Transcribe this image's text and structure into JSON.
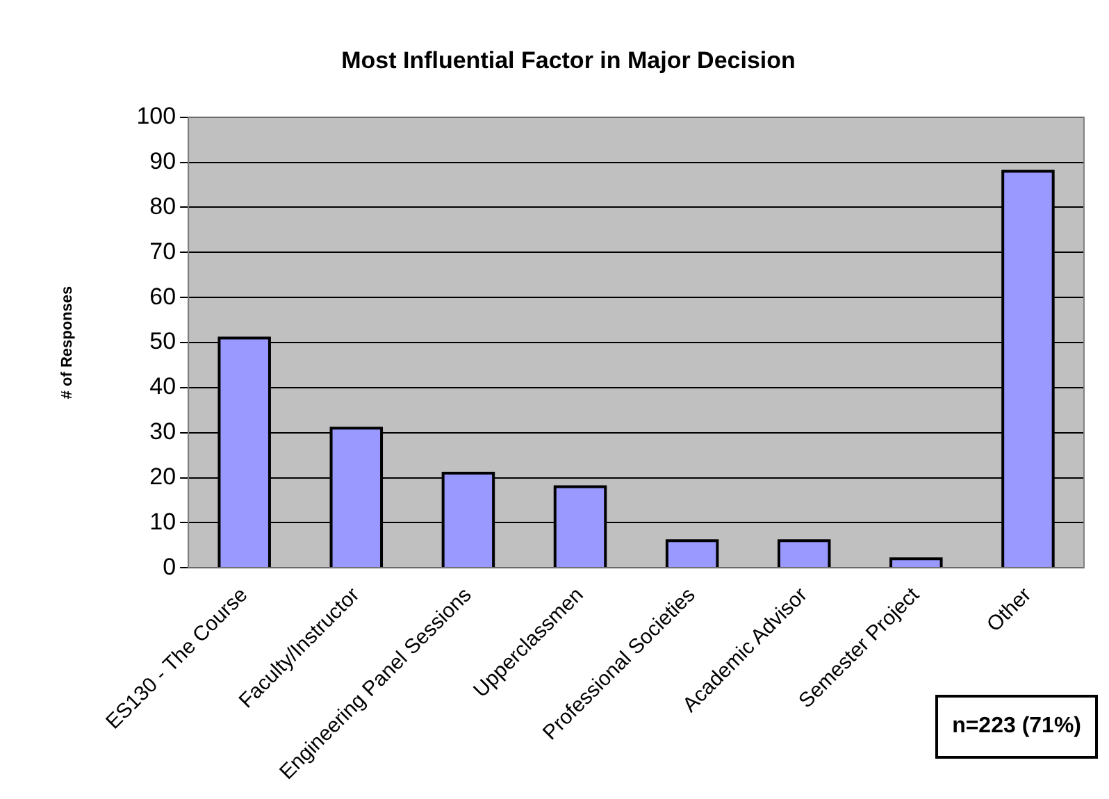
{
  "chart_data": {
    "type": "bar",
    "title": "Most Influential Factor in Major Decision",
    "ylabel": "# of Responses",
    "categories": [
      "ES130 - The Course",
      "Faculty/Instructor",
      "Engineering Panel Sessions",
      "Upperclassmen",
      "Professional Societies",
      "Academic Advisor",
      "Semester Project",
      "Other"
    ],
    "values": [
      51,
      31,
      21,
      18,
      6,
      6,
      2,
      88
    ],
    "color": "#9999ff",
    "ylim": [
      0,
      100
    ],
    "yticks": [
      0,
      10,
      20,
      30,
      40,
      50,
      60,
      70,
      80,
      90,
      100
    ],
    "grid": "y",
    "legend": false,
    "annotations": [
      "n=223  (71%)"
    ]
  }
}
